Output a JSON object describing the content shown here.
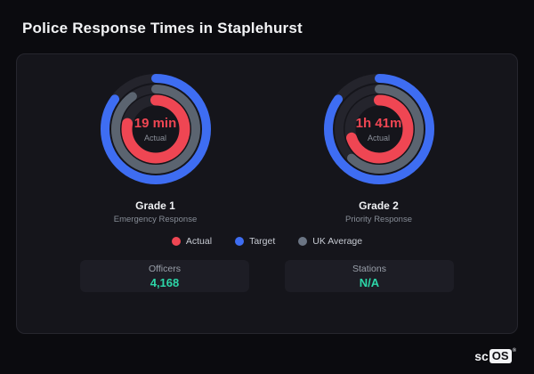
{
  "page": {
    "title": "Police Response Times in Staplehurst"
  },
  "chart_data": {
    "type": "radial-gauge",
    "gauges": [
      {
        "value_label": "19 min",
        "value_sub": "Actual",
        "title": "Grade 1",
        "subtitle": "Emergency Response",
        "rings": [
          {
            "name": "Target",
            "color": "#3e6df2",
            "fraction": 0.85
          },
          {
            "name": "UK Average",
            "color": "#5b6470",
            "fraction": 0.9
          },
          {
            "name": "Actual",
            "color": "#ef4653",
            "fraction": 0.78
          }
        ]
      },
      {
        "value_label": "1h 41m",
        "value_sub": "Actual",
        "title": "Grade 2",
        "subtitle": "Priority Response",
        "rings": [
          {
            "name": "Target",
            "color": "#3e6df2",
            "fraction": 0.85
          },
          {
            "name": "UK Average",
            "color": "#5b6470",
            "fraction": 0.62
          },
          {
            "name": "Actual",
            "color": "#ef4653",
            "fraction": 0.7
          }
        ]
      }
    ],
    "legend": [
      {
        "label": "Actual",
        "color": "#ef4653"
      },
      {
        "label": "Target",
        "color": "#3e6df2"
      },
      {
        "label": "UK Average",
        "color": "#6b7584"
      }
    ],
    "track_color": "#24242c"
  },
  "stats": [
    {
      "label": "Officers",
      "value": "4,168"
    },
    {
      "label": "Stations",
      "value": "N/A"
    }
  ],
  "logo": {
    "text_sc": "sc",
    "text_os": "OS",
    "registered": "®"
  }
}
